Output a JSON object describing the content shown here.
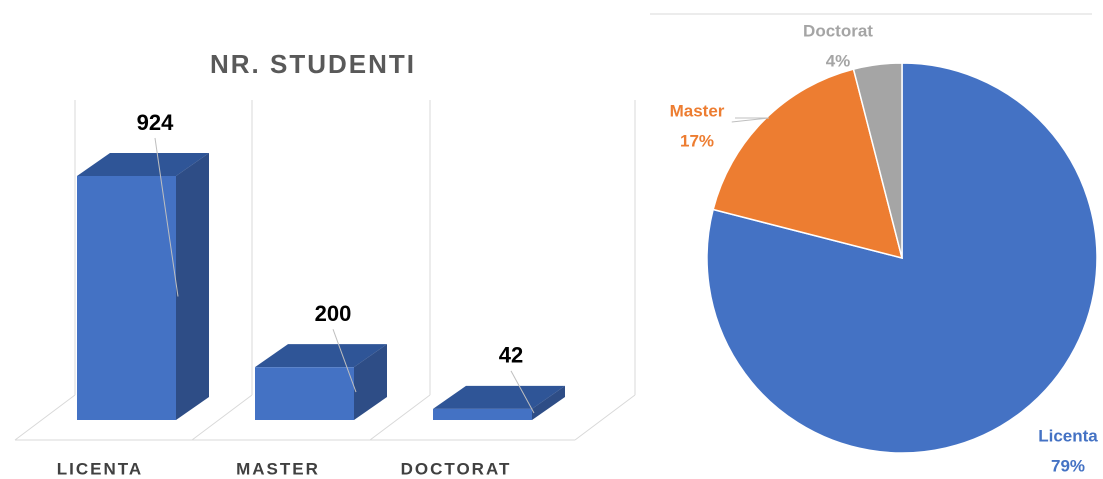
{
  "chart_data": [
    {
      "type": "bar3d",
      "title": "NR. STUDENTI",
      "categories": [
        "LICENTA",
        "MASTER",
        "DOCTORAT"
      ],
      "values": [
        924,
        200,
        42
      ],
      "color": "#4472c4"
    },
    {
      "type": "pie",
      "categories": [
        "Licenta",
        "Master",
        "Doctorat"
      ],
      "values": [
        79,
        17,
        4
      ],
      "value_labels": [
        "79%",
        "17%",
        "4%"
      ],
      "colors": [
        "#4472c4",
        "#ed7d31",
        "#a5a5a5"
      ]
    }
  ]
}
